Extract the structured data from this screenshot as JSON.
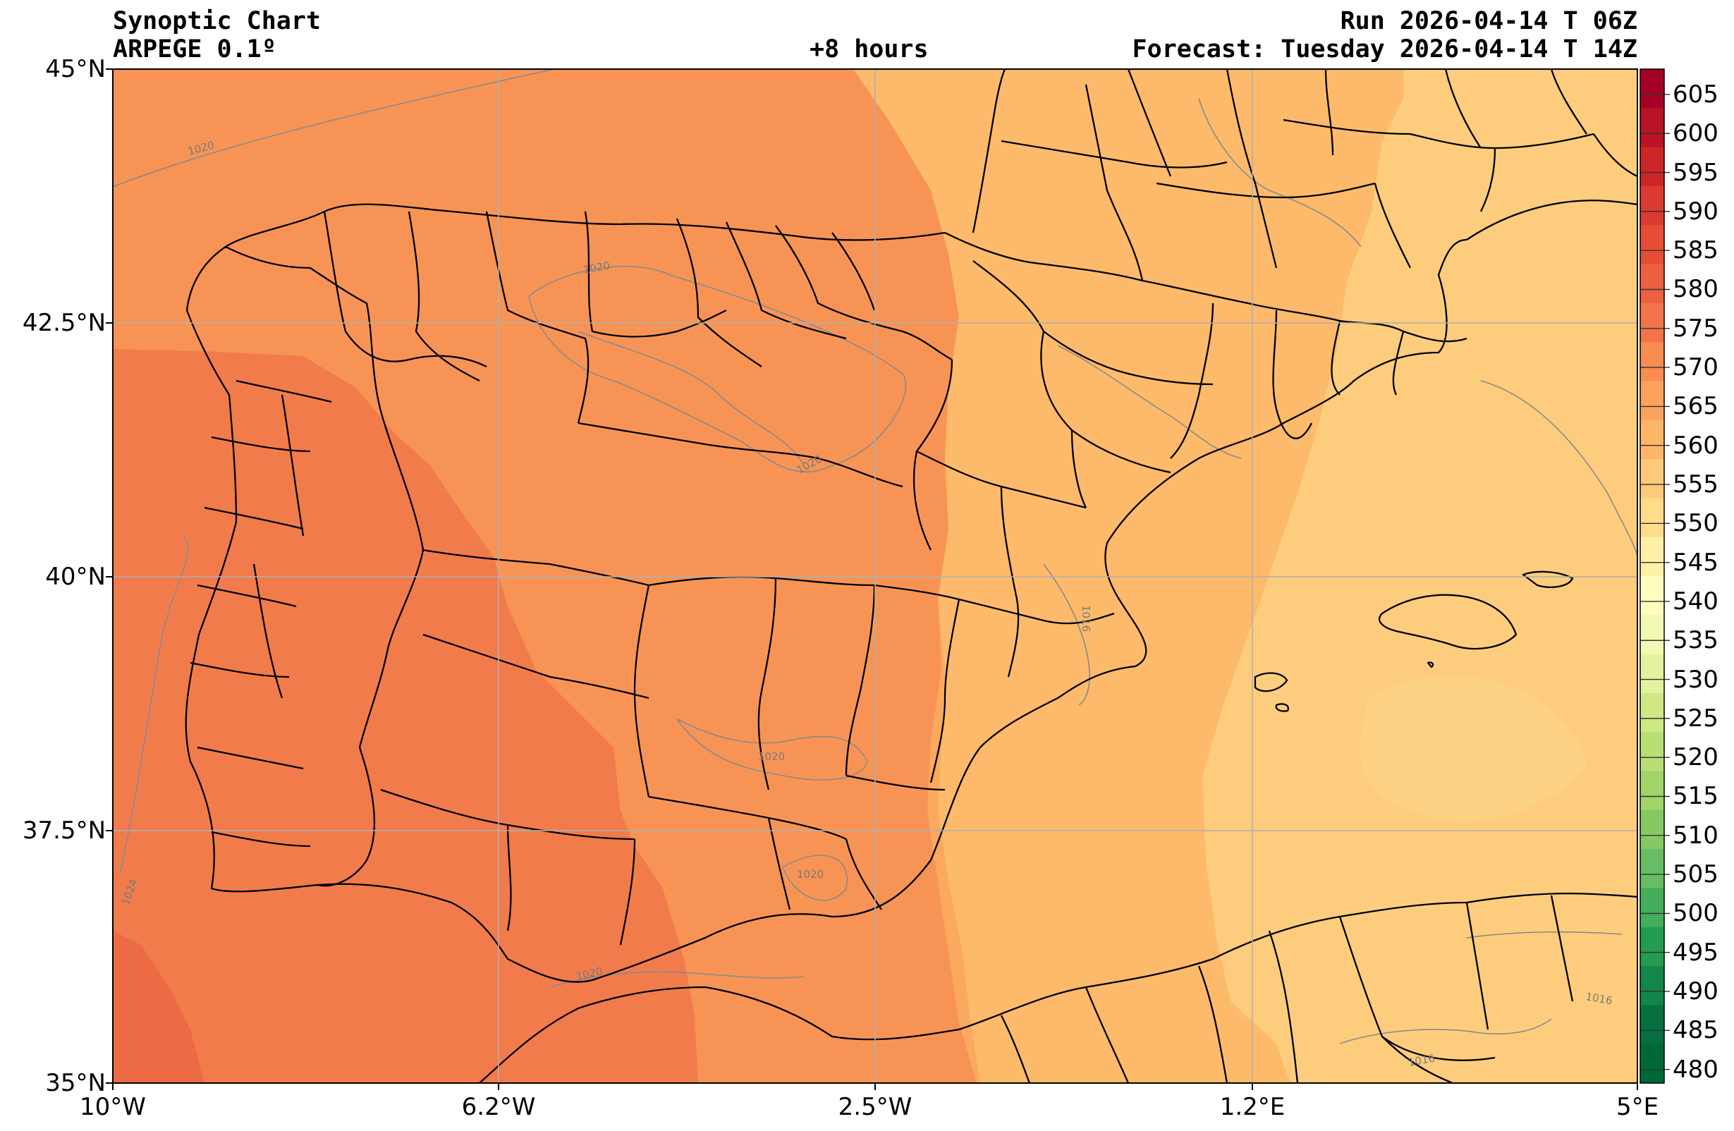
{
  "header": {
    "title": "Synoptic Chart",
    "model": "ARPEGE 0.1º",
    "lead_time": "+8 hours",
    "run": "Run 2026-04-14 T 06Z",
    "forecast": "Forecast: Tuesday 2026-04-14 T 14Z"
  },
  "axes": {
    "lat_ticks": [
      "45°N",
      "42.5°N",
      "40°N",
      "37.5°N",
      "35°N"
    ],
    "lon_ticks": [
      "10°W",
      "6.2°W",
      "2.5°W",
      "1.2°E",
      "5°E"
    ]
  },
  "colorbar": {
    "labels": [
      "605",
      "600",
      "595",
      "590",
      "585",
      "580",
      "575",
      "570",
      "565",
      "560",
      "555",
      "550",
      "545",
      "540",
      "535",
      "530",
      "525",
      "520",
      "515",
      "510",
      "505",
      "500",
      "495",
      "490",
      "485",
      "480"
    ],
    "colors": [
      "#a50026",
      "#b91326",
      "#cc2627",
      "#da3a2f",
      "#e54e35",
      "#ec613f",
      "#f3744a",
      "#f88d52",
      "#fba35c",
      "#fdb567",
      "#fec978",
      "#fedc89",
      "#fff0a8",
      "#fffebe",
      "#f2f9b3",
      "#e3f29c",
      "#cfe883",
      "#b8df74",
      "#a1d469",
      "#86c964",
      "#66bd63",
      "#45ad5b",
      "#249c50",
      "#138649",
      "#066f40",
      "#006837"
    ]
  },
  "isobars": {
    "labels": [
      "1020",
      "1020",
      "1020",
      "1020",
      "1020",
      "1020",
      "1024",
      "1016",
      "1016",
      "1016"
    ]
  },
  "colors": {
    "zone_580": "#ec6a44",
    "zone_575": "#f27b4c",
    "zone_570": "#f79455",
    "zone_565": "#fba95e",
    "zone_560": "#fcba6a",
    "zone_555": "#fdcd7d",
    "grid": "#b0b0b0",
    "isobar": "#8a8a8a",
    "border": "#000000"
  }
}
